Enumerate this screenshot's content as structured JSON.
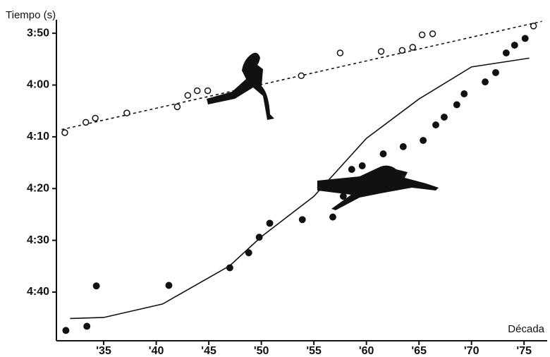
{
  "chart_data": {
    "type": "scatter",
    "y_label": "Tiempo (s)",
    "x_label": "Década",
    "xlim": [
      30.5,
      77.2
    ],
    "ylim": [
      226.3,
      289.4
    ],
    "y_reversed": true,
    "xticks": [
      {
        "value": 35,
        "label": "'35"
      },
      {
        "value": 40,
        "label": "'40"
      },
      {
        "value": 45,
        "label": "'45"
      },
      {
        "value": 50,
        "label": "'50"
      },
      {
        "value": 55,
        "label": "'55"
      },
      {
        "value": 60,
        "label": "'60"
      },
      {
        "value": 65,
        "label": "'65"
      },
      {
        "value": 70,
        "label": "'70"
      },
      {
        "value": 75,
        "label": "'75"
      }
    ],
    "yticks": [
      {
        "value": 230,
        "label": "3:50"
      },
      {
        "value": 240,
        "label": "4:00"
      },
      {
        "value": 250,
        "label": "4:10"
      },
      {
        "value": 260,
        "label": "4:20"
      },
      {
        "value": 270,
        "label": "4:30"
      },
      {
        "value": 280,
        "label": "4:40"
      }
    ],
    "series": [
      {
        "marker": "open",
        "color": "#111111",
        "x": [
          31.3,
          33.3,
          34.2,
          37.2,
          42.0,
          43.0,
          43.9,
          44.9,
          53.8,
          57.5,
          61.4,
          63.4,
          64.4,
          65.3,
          66.3,
          75.9
        ],
        "values": [
          249.2,
          247.2,
          246.4,
          245.4,
          244.2,
          242.0,
          241.1,
          241.1,
          238.2,
          233.8,
          233.5,
          233.3,
          232.7,
          230.3,
          230.1,
          228.6
        ]
      },
      {
        "marker": "filled",
        "color": "#111111",
        "x": [
          31.4,
          33.4,
          34.3,
          41.2,
          47.0,
          48.8,
          49.8,
          50.8,
          53.9,
          56.8,
          57.8,
          58.6,
          59.6,
          61.6,
          63.5,
          65.4,
          66.6,
          67.4,
          68.6,
          69.3,
          71.3,
          72.3,
          73.3,
          74.1,
          75.1
        ],
        "values": [
          287.4,
          286.6,
          278.8,
          278.7,
          275.3,
          272.4,
          269.4,
          266.7,
          266.0,
          265.5,
          261.5,
          256.3,
          255.6,
          253.3,
          251.9,
          250.7,
          247.7,
          246.2,
          243.8,
          241.7,
          239.4,
          237.6,
          233.8,
          232.3,
          231.0
        ]
      }
    ],
    "trend_lines": [
      {
        "style": "dashed",
        "color": "#111111",
        "x": [
          31.0,
          76.7
        ],
        "values": [
          248.6,
          227.7
        ]
      },
      {
        "style": "solid",
        "color": "#111111",
        "x": [
          31.8,
          35,
          40.6,
          47,
          50,
          55,
          60,
          65,
          70,
          75.5
        ],
        "values": [
          285.1,
          284.9,
          282.3,
          274.9,
          269.3,
          261.5,
          250.3,
          242.7,
          236.5,
          234.8
        ]
      }
    ]
  }
}
